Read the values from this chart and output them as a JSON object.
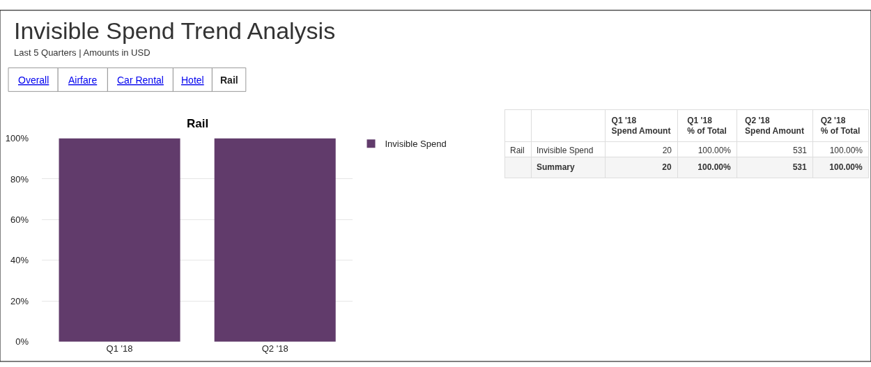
{
  "chart_data": [
    {
      "type": "bar",
      "title": "Rail",
      "categories": [
        "Q1 '18",
        "Q2 '18"
      ],
      "series": [
        {
          "name": "Invisible Spend",
          "color": "#613b6b",
          "values": [
            100,
            100
          ]
        }
      ],
      "ylim": [
        0,
        100
      ],
      "yticks": [
        {
          "value": 0,
          "label": "0%"
        },
        {
          "value": 20,
          "label": "20%"
        },
        {
          "value": 40,
          "label": "40%"
        },
        {
          "value": 60,
          "label": "60%"
        },
        {
          "value": 80,
          "label": "80%"
        },
        {
          "value": 100,
          "label": "100%"
        }
      ],
      "grid": "y",
      "legend": "top right",
      "annotations": [
        "Invisible Spend Trend Analysis",
        "Last 5 Quarters | Amounts in USD",
        "Overall",
        "Airfare",
        "Car Rental",
        "Hotel",
        "Rail"
      ]
    },
    {
      "type": "other",
      "categories": [
        "Q1 '18",
        "Q2 '18"
      ],
      "series": [
        {
          "name": "Spend Amount",
          "values": [
            20,
            531
          ],
          "value_labels": [
            "20",
            "531"
          ]
        },
        {
          "name": "% of Total",
          "values": [
            100,
            100
          ],
          "value_labels": [
            "100.00%",
            "100.00%"
          ]
        }
      ],
      "annotations": [
        "Rail",
        "Invisible Spend",
        "Summary"
      ]
    }
  ]
}
